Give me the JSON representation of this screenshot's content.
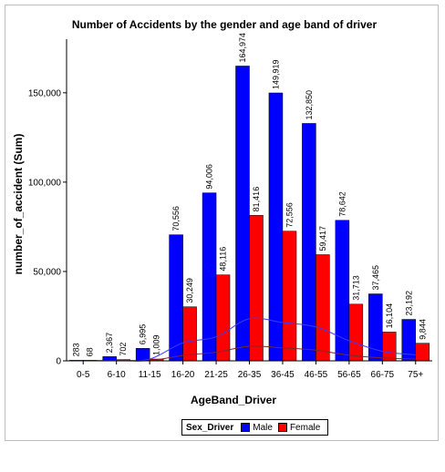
{
  "chart_data": {
    "type": "bar",
    "title": "Number of Accidents by the gender and age band of driver",
    "xlabel": "AgeBand_Driver",
    "ylabel": "number_of_accident (Sum)",
    "categories": [
      "0-5",
      "6-10",
      "11-15",
      "16-20",
      "21-25",
      "26-35",
      "36-45",
      "46-55",
      "56-65",
      "66-75",
      "75+"
    ],
    "series": [
      {
        "name": "Male",
        "color": "#0000ff",
        "values": [
          283,
          2367,
          6995,
          70556,
          94006,
          164974,
          149919,
          132850,
          78642,
          37465,
          23192
        ],
        "labels": [
          "283",
          "2,367",
          "6,995",
          "70,556",
          "94,006",
          "164,974",
          "149,919",
          "132,850",
          "78,642",
          "37,465",
          "23,192"
        ]
      },
      {
        "name": "Female",
        "color": "#ff0000",
        "values": [
          68,
          702,
          1009,
          30249,
          48116,
          81416,
          72556,
          59417,
          31713,
          16104,
          9844
        ],
        "labels": [
          "68",
          "702",
          "1,009",
          "30,249",
          "48,116",
          "81,416",
          "72,556",
          "59,417",
          "31,713",
          "16,104",
          "9,844"
        ]
      }
    ],
    "ylim": [
      0,
      180000
    ],
    "yticks": [
      0,
      50000,
      100000,
      150000
    ],
    "ytick_labels": [
      "0",
      "50,000",
      "100,000",
      "150,000"
    ],
    "legend": {
      "title": "Sex_Driver",
      "placement": "bottom-center"
    },
    "grid": false
  }
}
